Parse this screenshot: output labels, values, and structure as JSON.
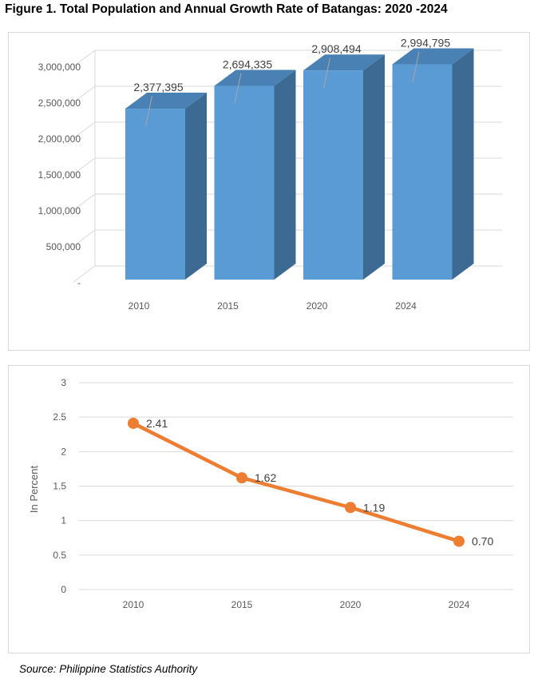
{
  "figure_title": "Figure 1. Total Population and Annual Growth Rate of Batangas: 2020 -2024",
  "source_text": "Source: Philippine Statistics Authority",
  "colors": {
    "bar_front": "#5b9bd5",
    "bar_side": "#3c6a92",
    "bar_top": "#4a81b4",
    "line": "#ed7d31",
    "grid": "#d9d9d9",
    "text": "#595959"
  },
  "chart_data": [
    {
      "type": "bar",
      "style": "3d-column",
      "title": "",
      "categories": [
        "2010",
        "2015",
        "2020",
        "2024"
      ],
      "values": [
        2377395,
        2694335,
        2908494,
        2994795
      ],
      "data_labels": [
        "2,377,395",
        "2,694,335",
        "2,908,494",
        "2,994,795"
      ],
      "yticks": [
        "-",
        "500,000",
        "1,000,000",
        "1,500,000",
        "2,000,000",
        "2,500,000",
        "3,000,000"
      ],
      "ylim": [
        0,
        3000000
      ],
      "xlabel": "",
      "ylabel": "",
      "grid": true,
      "legend": "none"
    },
    {
      "type": "line",
      "title": "",
      "categories": [
        "2010",
        "2015",
        "2020",
        "2024"
      ],
      "values": [
        2.41,
        1.62,
        1.19,
        0.7
      ],
      "data_labels": [
        "2.41",
        "1.62",
        "1.19",
        "0.70"
      ],
      "yticks": [
        "0",
        "0.5",
        "1",
        "1.5",
        "2",
        "2.5",
        "3"
      ],
      "ylim": [
        0,
        3
      ],
      "xlabel": "",
      "ylabel": "In Percent",
      "grid": true,
      "legend": "none"
    }
  ]
}
